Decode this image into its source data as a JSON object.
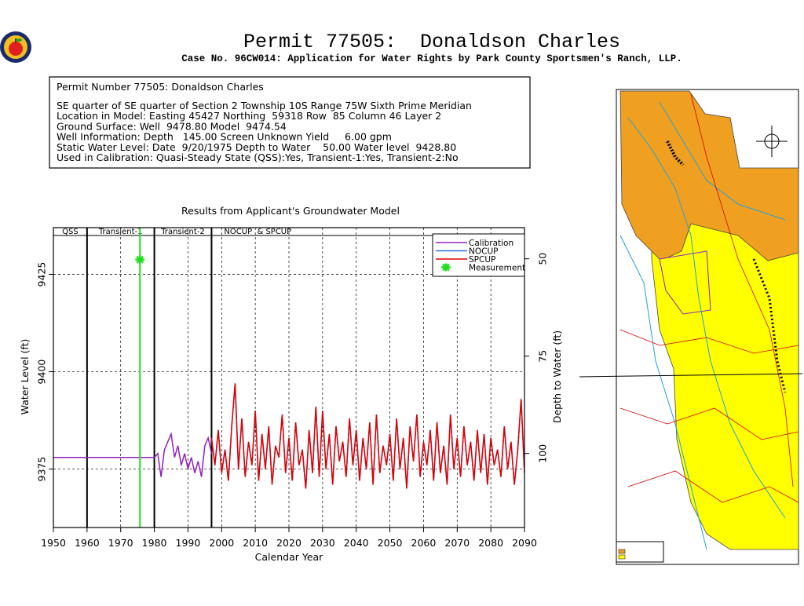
{
  "header": {
    "title": "Permit 77505:  Donaldson Charles",
    "subtitle": "Case No. 96CW014: Application for Water Rights by Park County Sportsmen's Ranch, LLP."
  },
  "info": {
    "heading": "Permit Number 77505: Donaldson Charles",
    "lines": [
      "SE quarter of SE quarter of Section 2 Township 10S Range 75W Sixth Prime Meridian",
      "Location in Model: Easting 45427 Northing  59318 Row  85 Column 46 Layer 2",
      "Ground Surface: Well  9478.80 Model  9474.54",
      "Well Information: Depth   145.00 Screen Unknown Yield     6.00 gpm",
      "Static Water Level: Date  9/20/1975 Depth to Water    50.00 Water level  9428.80",
      "Used in Calibration: Quasi-Steady State (QSS):Yes, Transient-1:Yes, Transient-2:No"
    ]
  },
  "chart_data": {
    "type": "line",
    "title": "Results from Applicant's Groundwater Model",
    "xlabel": "Calendar Year",
    "ylabel": "Water Level (ft)",
    "y2label": "Depth to Water (ft)",
    "xlim": [
      1950,
      2090
    ],
    "xticks": [
      1950,
      1960,
      1970,
      1980,
      1990,
      2000,
      2010,
      2020,
      2030,
      2040,
      2050,
      2060,
      2070,
      2080,
      2090
    ],
    "ylim": [
      9360,
      9437
    ],
    "yticks": [
      9375,
      9400,
      9425
    ],
    "y2lim": [
      119,
      42
    ],
    "y2ticks": [
      50,
      75,
      100
    ],
    "grid": true,
    "legend": "upper right",
    "periods": [
      {
        "label": "QSS",
        "start": 1950,
        "end": 1960
      },
      {
        "label": "Transient-1",
        "start": 1960,
        "end": 1980
      },
      {
        "label": "Transient-2",
        "start": 1980,
        "end": 1997
      },
      {
        "label": "NOCUP  & SPCUP",
        "start": 1997,
        "end": 2090
      }
    ],
    "series": [
      {
        "name": "Calibration",
        "color": "#9020c0",
        "x": [
          1950,
          1980,
          1981,
          1982,
          1983,
          1984,
          1985,
          1986,
          1987,
          1988,
          1989,
          1990,
          1991,
          1992,
          1993,
          1994,
          1995,
          1996,
          1997
        ],
        "values": [
          9378,
          9378,
          9379,
          9373,
          9380,
          9382,
          9384,
          9378,
          9381,
          9376,
          9379,
          9375,
          9378,
          9374,
          9377,
          9373,
          9381,
          9383,
          9379
        ]
      },
      {
        "name": "NOCUP",
        "color": "#3070e0",
        "x": [
          1997,
          1998,
          1999,
          2000,
          2001,
          2002,
          2003,
          2004,
          2005,
          2006,
          2007,
          2008,
          2009,
          2010,
          2011,
          2012,
          2013,
          2014,
          2015,
          2016,
          2017,
          2018,
          2019,
          2020,
          2021,
          2022,
          2023,
          2024,
          2025,
          2026,
          2027,
          2028,
          2029,
          2030,
          2031,
          2032,
          2033,
          2034,
          2035,
          2036,
          2037,
          2038,
          2039,
          2040,
          2041,
          2042,
          2043,
          2044,
          2045,
          2046,
          2047,
          2048,
          2049,
          2050,
          2051,
          2052,
          2053,
          2054,
          2055,
          2056,
          2057,
          2058,
          2059,
          2060,
          2061,
          2062,
          2063,
          2064,
          2065,
          2066,
          2067,
          2068,
          2069,
          2070,
          2071,
          2072,
          2073,
          2074,
          2075,
          2076,
          2077,
          2078,
          2079,
          2080,
          2081,
          2082,
          2083,
          2084,
          2085,
          2086,
          2087,
          2088,
          2089,
          2090
        ],
        "values": [
          9383,
          9376,
          9385,
          9374,
          9380,
          9372,
          9386,
          9397,
          9375,
          9388,
          9373,
          9382,
          9376,
          9390,
          9372,
          9384,
          9375,
          9386,
          9371,
          9381,
          9378,
          9389,
          9374,
          9383,
          9372,
          9387,
          9376,
          9380,
          9370,
          9385,
          9374,
          9391,
          9373,
          9390,
          9375,
          9384,
          9371,
          9386,
          9377,
          9382,
          9373,
          9388,
          9376,
          9385,
          9372,
          9383,
          9375,
          9387,
          9371,
          9389,
          9374,
          9381,
          9376,
          9384,
          9372,
          9388,
          9375,
          9383,
          9370,
          9386,
          9377,
          9389,
          9373,
          9382,
          9376,
          9385,
          9372,
          9387,
          9374,
          9381,
          9371,
          9389,
          9375,
          9383,
          9373,
          9386,
          9376,
          9382,
          9372,
          9385,
          9374,
          9384,
          9371,
          9383,
          9376,
          9380,
          9373,
          9386,
          9375,
          9382,
          9371,
          9380,
          9393,
          9374
        ]
      },
      {
        "name": "SPCUP",
        "color": "#e00000",
        "x": [
          1997,
          1998,
          1999,
          2000,
          2001,
          2002,
          2003,
          2004,
          2005,
          2006,
          2007,
          2008,
          2009,
          2010,
          2011,
          2012,
          2013,
          2014,
          2015,
          2016,
          2017,
          2018,
          2019,
          2020,
          2021,
          2022,
          2023,
          2024,
          2025,
          2026,
          2027,
          2028,
          2029,
          2030,
          2031,
          2032,
          2033,
          2034,
          2035,
          2036,
          2037,
          2038,
          2039,
          2040,
          2041,
          2042,
          2043,
          2044,
          2045,
          2046,
          2047,
          2048,
          2049,
          2050,
          2051,
          2052,
          2053,
          2054,
          2055,
          2056,
          2057,
          2058,
          2059,
          2060,
          2061,
          2062,
          2063,
          2064,
          2065,
          2066,
          2067,
          2068,
          2069,
          2070,
          2071,
          2072,
          2073,
          2074,
          2075,
          2076,
          2077,
          2078,
          2079,
          2080,
          2081,
          2082,
          2083,
          2084,
          2085,
          2086,
          2087,
          2088,
          2089,
          2090
        ],
        "values": [
          9383,
          9376,
          9385,
          9374,
          9380,
          9372,
          9386,
          9397,
          9375,
          9388,
          9373,
          9382,
          9376,
          9390,
          9372,
          9384,
          9375,
          9386,
          9371,
          9381,
          9378,
          9389,
          9374,
          9383,
          9372,
          9387,
          9376,
          9380,
          9370,
          9385,
          9374,
          9391,
          9373,
          9390,
          9375,
          9384,
          9371,
          9386,
          9377,
          9382,
          9373,
          9388,
          9376,
          9385,
          9372,
          9383,
          9375,
          9387,
          9371,
          9389,
          9374,
          9381,
          9376,
          9384,
          9372,
          9388,
          9375,
          9383,
          9370,
          9386,
          9377,
          9389,
          9373,
          9382,
          9376,
          9385,
          9372,
          9387,
          9374,
          9381,
          9371,
          9389,
          9375,
          9383,
          9373,
          9386,
          9376,
          9382,
          9372,
          9385,
          9374,
          9384,
          9371,
          9383,
          9376,
          9380,
          9373,
          9386,
          9375,
          9382,
          9371,
          9380,
          9393,
          9374
        ]
      }
    ],
    "measurement": {
      "name": "Measurement",
      "color": "#20e020",
      "x": 1975.72,
      "value": 9428.8
    }
  }
}
